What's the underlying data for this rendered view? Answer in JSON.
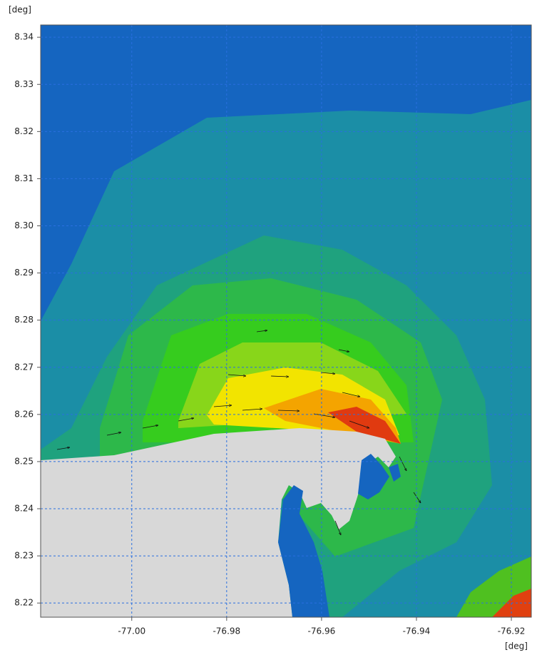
{
  "chart_data": {
    "type": "contour",
    "x_label": "[deg]",
    "y_label": "[deg]",
    "xlim": [
      -77.0192,
      -76.9158
    ],
    "ylim": [
      8.217,
      8.3426
    ],
    "xticks": [
      {
        "value": -77,
        "label": "-77.00"
      },
      -76.98,
      -76.96,
      -76.94,
      -76.92
    ],
    "yticks": [
      8.22,
      8.23,
      8.24,
      8.25,
      8.26,
      8.27,
      8.28,
      8.29,
      {
        "value": 8.3,
        "label": "8.30"
      },
      8.31,
      8.32,
      8.33,
      8.34
    ],
    "grid": true
  }
}
